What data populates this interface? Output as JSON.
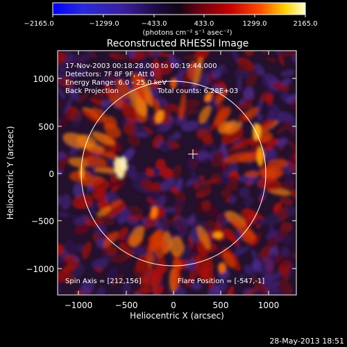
{
  "colorbar": {
    "ticks": [
      "−2165.0",
      "−1299.0",
      "−433.0",
      "433.0",
      "1299.0",
      "2165.0"
    ],
    "unit_label": "(photons cm⁻² s⁻¹ asec⁻²)",
    "gradient_colors": [
      "#0000ff",
      "#3a1e9e",
      "#1b0b3d",
      "#2a1a3a",
      "#6b0012",
      "#c20000",
      "#ff4b00",
      "#ffd200",
      "#ffffc8"
    ]
  },
  "title": "Reconstructed RHESSI Image",
  "annotations": {
    "time_range": "17-Nov-2003 00:18:28.000 to 00:19:44.000",
    "detectors": "Detectors: 7F 8F 9F, Att 0",
    "energy_range": "Energy Range: 6.0 - 25.0 keV",
    "back_projection": "Back Projection",
    "total_counts": "Total counts: 6.28E+03",
    "spin_axis": "Spin Axis = [212,156]",
    "flare_position": "Flare Position = [-547,-1]"
  },
  "axes": {
    "xlabel": "Heliocentric X (arcsec)",
    "ylabel": "Heliocentric Y (arcsec)",
    "x_ticks": [
      "−1000",
      "−500",
      "0",
      "500",
      "1000"
    ],
    "y_ticks": [
      "1000",
      "500",
      "0",
      "−500",
      "−1000"
    ]
  },
  "footer": {
    "timestamp": "28-May-2013 18:51"
  },
  "colors": {
    "background": "#000000",
    "plot_background": "#2a1a3a",
    "foreground": "#ffffff"
  }
}
